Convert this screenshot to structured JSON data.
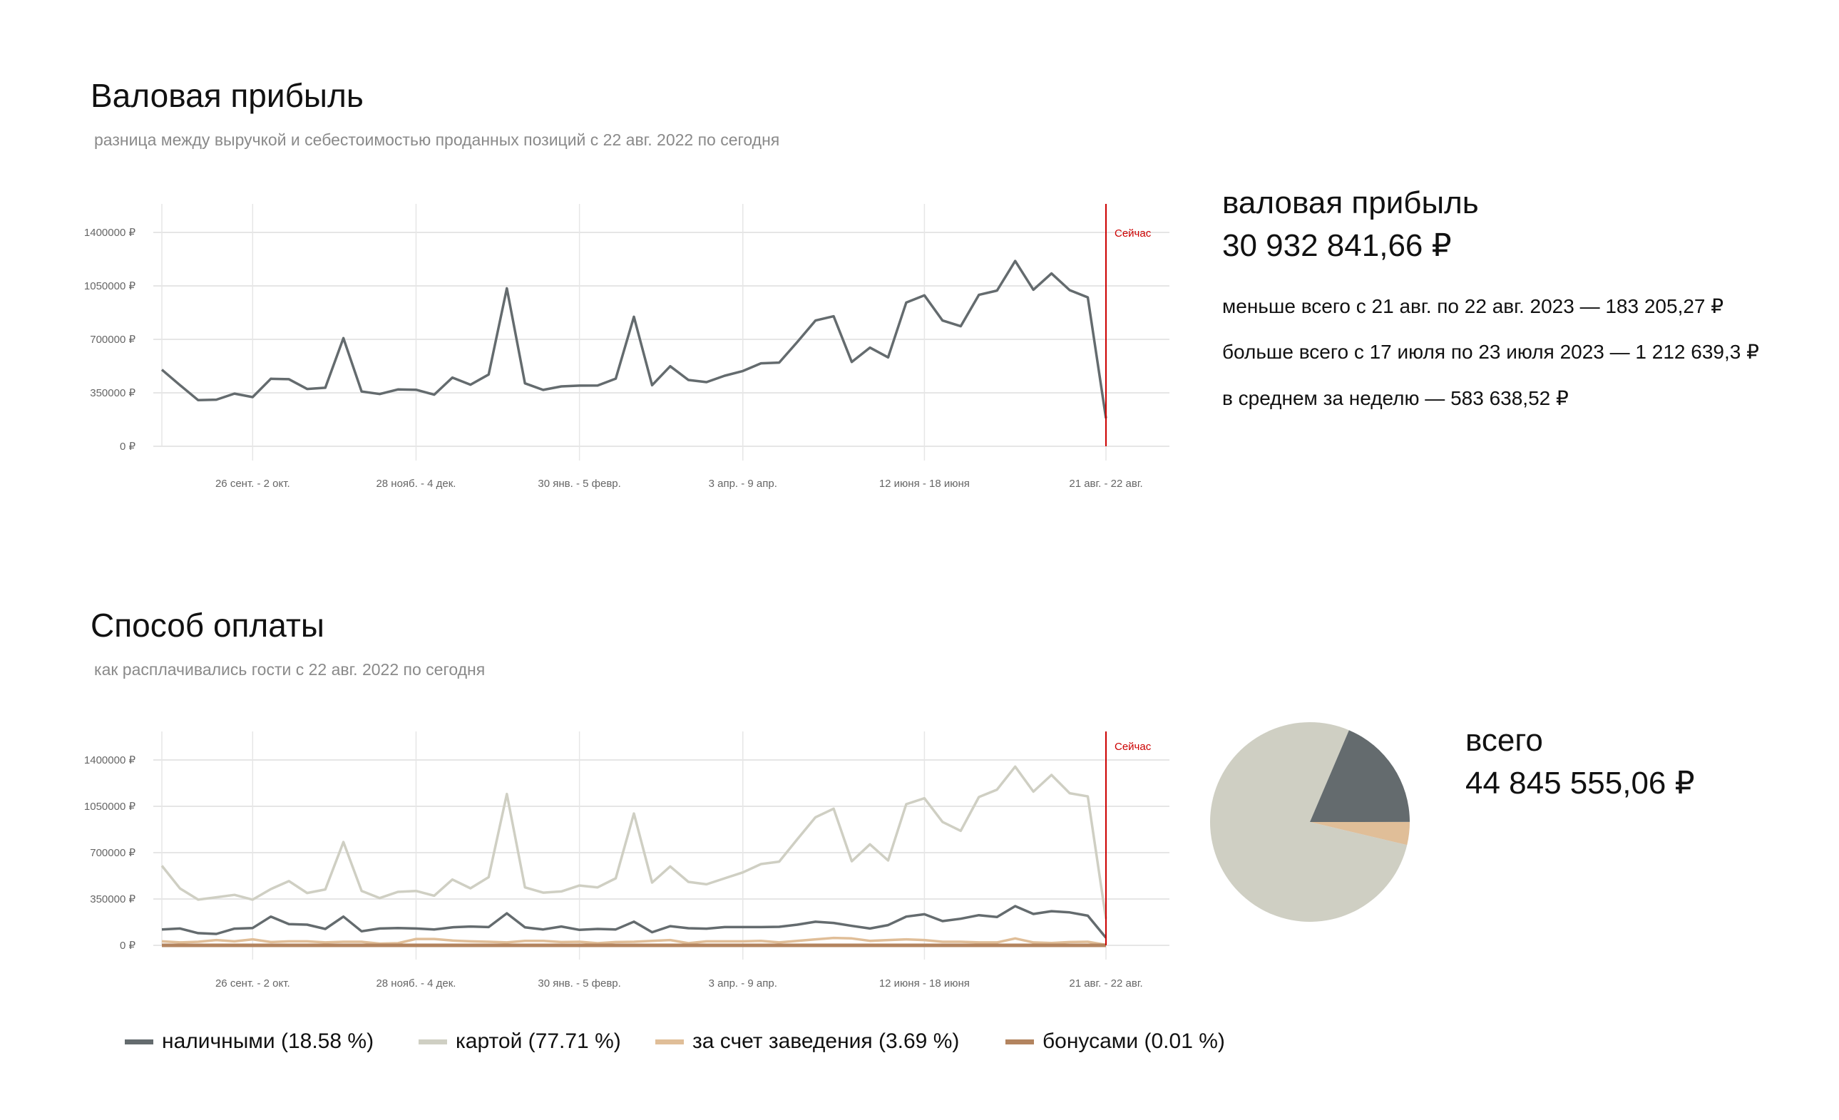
{
  "profit_section": {
    "title": "Валовая прибыль",
    "subtitle": "разница между выручкой и себестоимостью проданных позиций с 22 авг. 2022 по сегодня",
    "summary": {
      "label": "валовая прибыль",
      "total": "30 932 841,66 ₽",
      "min_line": "меньше всего с 21 авг. по 22 авг. 2023 — 183 205,27 ₽",
      "max_line": "больше всего с 17 июля по 23 июля 2023 — 1 212 639,3 ₽",
      "avg_line": "в среднем за неделю — 583 638,52 ₽"
    }
  },
  "payment_section": {
    "title": "Способ оплаты",
    "subtitle": "как расплачивались гости с 22 авг. 2022 по сегодня",
    "total_label": "всего",
    "total": "44 845 555,06 ₽"
  },
  "chart_data": [
    {
      "type": "line",
      "grid": true,
      "ylim": [
        0,
        1400000
      ],
      "y_ticks": [
        "0 ₽",
        "350000 ₽",
        "700000 ₽",
        "1050000 ₽",
        "1400000 ₽"
      ],
      "y_tick_values": [
        0,
        350000,
        700000,
        1050000,
        1400000
      ],
      "x_ticks": [
        {
          "index": 5,
          "label": "26 сент. - 2 окт."
        },
        {
          "index": 14,
          "label": "28 нояб. - 4 дек."
        },
        {
          "index": 23,
          "label": "30 янв. - 5 февр."
        },
        {
          "index": 32,
          "label": "3 апр. - 9 апр."
        },
        {
          "index": 42,
          "label": "12 июня - 18 июня"
        },
        {
          "index": 52,
          "label": "21 авг. - 22 авг."
        }
      ],
      "now_marker": {
        "index": 52,
        "label": "Сейчас",
        "color": "#cc0000"
      },
      "series": [
        {
          "color": "#646b6e",
          "values": [
            501000,
            400000,
            302000,
            305000,
            345000,
            322000,
            442000,
            439000,
            375000,
            383000,
            708000,
            359000,
            342000,
            372000,
            370000,
            338000,
            450000,
            403000,
            470000,
            1034000,
            412000,
            369000,
            392000,
            397000,
            398000,
            443000,
            848000,
            400000,
            524000,
            434000,
            420000,
            462000,
            493000,
            543000,
            548000,
            683000,
            823000,
            851000,
            552000,
            646000,
            582000,
            941000,
            988000,
            823000,
            786000,
            991000,
            1019000,
            1212639,
            1025000,
            1131000,
            1022000,
            975000,
            183205
          ]
        }
      ]
    },
    {
      "type": "line",
      "grid": true,
      "ylim": [
        0,
        1400000
      ],
      "y_ticks": [
        "0 ₽",
        "350000 ₽",
        "700000 ₽",
        "1050000 ₽",
        "1400000 ₽"
      ],
      "y_tick_values": [
        0,
        350000,
        700000,
        1050000,
        1400000
      ],
      "x_ticks": [
        {
          "index": 5,
          "label": "26 сент. - 2 окт."
        },
        {
          "index": 14,
          "label": "28 нояб. - 4 дек."
        },
        {
          "index": 23,
          "label": "30 янв. - 5 февр."
        },
        {
          "index": 32,
          "label": "3 апр. - 9 апр."
        },
        {
          "index": 42,
          "label": "12 июня - 18 июня"
        },
        {
          "index": 52,
          "label": "21 авг. - 22 авг."
        }
      ],
      "now_marker": {
        "index": 52,
        "label": "Сейчас",
        "color": "#cc0000"
      },
      "legend_position": "bottom",
      "series": [
        {
          "name": "наличными (18.58 %)",
          "color": "#646b6e",
          "values": [
            120000,
            127000,
            92000,
            86000,
            126000,
            131000,
            217000,
            160000,
            156000,
            124000,
            217000,
            106000,
            127000,
            131000,
            127000,
            120000,
            136000,
            142000,
            138000,
            242000,
            136000,
            120000,
            142000,
            117000,
            124000,
            120000,
            179000,
            99000,
            145000,
            129000,
            126000,
            138000,
            138000,
            138000,
            140000,
            156000,
            178000,
            169000,
            147000,
            127000,
            153000,
            217000,
            235000,
            183000,
            201000,
            228000,
            214000,
            296000,
            237000,
            258000,
            249000,
            224000,
            57000
          ]
        },
        {
          "name": "картой (77.71 %)",
          "color": "#cfcfc3",
          "values": [
            601000,
            429000,
            345000,
            363000,
            381000,
            345000,
            425000,
            485000,
            395000,
            422000,
            780000,
            411000,
            357000,
            404000,
            411000,
            375000,
            497000,
            431000,
            515000,
            1143000,
            438000,
            398000,
            407000,
            452000,
            438000,
            506000,
            996000,
            474000,
            596000,
            479000,
            461000,
            506000,
            551000,
            614000,
            632000,
            802000,
            967000,
            1032000,
            635000,
            763000,
            641000,
            1066000,
            1111000,
            932000,
            865000,
            1120000,
            1176000,
            1350000,
            1161000,
            1287000,
            1149000,
            1125000,
            201000
          ]
        },
        {
          "name": "за счет заведения (3.69 %)",
          "color": "#e0be98",
          "values": [
            30000,
            22000,
            27000,
            40000,
            30000,
            45000,
            25000,
            30000,
            30000,
            22000,
            27000,
            27000,
            13000,
            16000,
            48000,
            48000,
            36000,
            30000,
            27000,
            22000,
            34000,
            34000,
            25000,
            27000,
            16000,
            25000,
            27000,
            34000,
            40000,
            16000,
            30000,
            30000,
            30000,
            34000,
            22000,
            34000,
            45000,
            56000,
            52000,
            34000,
            40000,
            45000,
            40000,
            27000,
            27000,
            22000,
            22000,
            52000,
            22000,
            18000,
            25000,
            27000,
            4000
          ]
        },
        {
          "name": "бонусами (0.01 %)",
          "color": "#b3845f",
          "values": [
            0,
            0,
            0,
            0,
            0,
            0,
            0,
            0,
            0,
            0,
            0,
            0,
            0,
            0,
            0,
            0,
            0,
            0,
            0,
            0,
            0,
            0,
            0,
            0,
            0,
            0,
            0,
            0,
            0,
            0,
            0,
            0,
            0,
            0,
            0,
            0,
            0,
            0,
            0,
            0,
            0,
            0,
            0,
            0,
            0,
            0,
            0,
            0,
            0,
            0,
            0,
            0,
            0
          ]
        }
      ]
    },
    {
      "type": "pie",
      "slices": [
        {
          "name": "за счет заведения",
          "percent": 3.69,
          "color": "#e0be98"
        },
        {
          "name": "бонусами",
          "percent": 0.01,
          "color": "#b3845f"
        },
        {
          "name": "картой",
          "percent": 77.71,
          "color": "#cfcfc3"
        },
        {
          "name": "наличными",
          "percent": 18.58,
          "color": "#646b6e"
        }
      ]
    }
  ]
}
